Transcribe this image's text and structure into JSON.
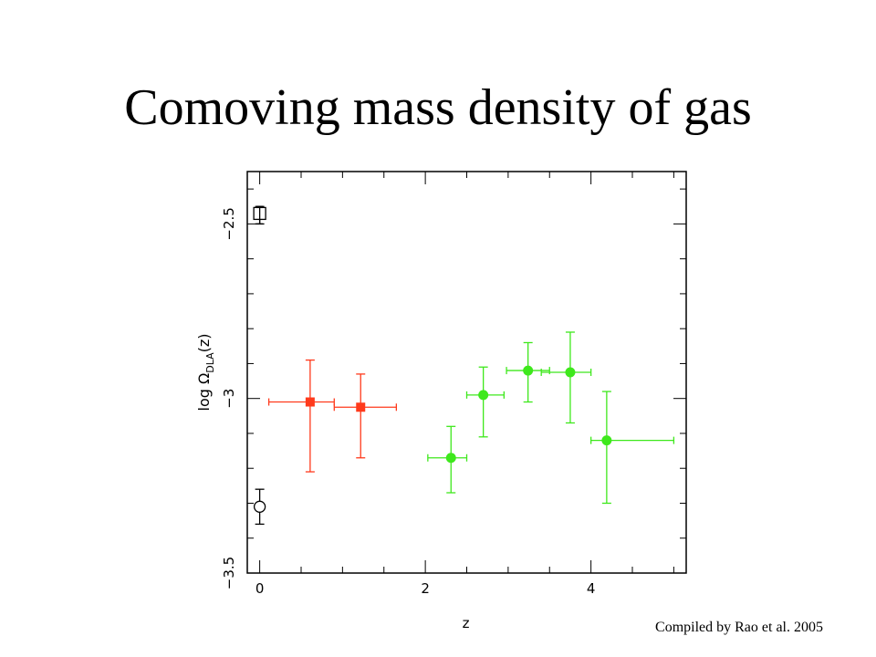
{
  "slide": {
    "title": "Comoving mass density of gas",
    "credit": "Compiled by Rao et al. 2005"
  },
  "chart_data": {
    "type": "scatter",
    "xlabel": "z",
    "ylabel": "log Ω",
    "ylabel_sub": "DLA",
    "ylabel_tail": "(z)",
    "xlim": [
      -0.15,
      5.15
    ],
    "ylim": [
      -3.5,
      -2.35
    ],
    "xticks": [
      0,
      2,
      4
    ],
    "xtick_labels": [
      "0",
      "2",
      "4"
    ],
    "yticks": [
      -3.5,
      -3,
      -2.5
    ],
    "ytick_labels": [
      "−3.5",
      "−3",
      "−2.5"
    ],
    "grid": false,
    "colors": {
      "low_z": "#ff3a1c",
      "high_z": "#3ee81c",
      "local": "#000000"
    },
    "series": [
      {
        "marker": "open-circle",
        "color": "#000000",
        "points": [
          {
            "x": 0.0,
            "y": -3.31,
            "x_lo": 0.0,
            "x_hi": 0.0,
            "y_lo": -3.36,
            "y_hi": -3.26
          }
        ]
      },
      {
        "marker": "open-square",
        "color": "#000000",
        "points": [
          {
            "x": 0.0,
            "y": -2.47,
            "x_lo": 0.0,
            "x_hi": 0.0,
            "y_lo": -2.5,
            "y_hi": -2.45
          }
        ]
      },
      {
        "marker": "filled-square",
        "color": "#ff3a1c",
        "points": [
          {
            "x": 0.609,
            "y": -3.01,
            "x_lo": 0.11,
            "x_hi": 0.9,
            "y_lo": -3.21,
            "y_hi": -2.89
          },
          {
            "x": 1.219,
            "y": -3.025,
            "x_lo": 0.9,
            "x_hi": 1.65,
            "y_lo": -3.17,
            "y_hi": -2.93
          }
        ]
      },
      {
        "marker": "filled-circle",
        "color": "#3ee81c",
        "points": [
          {
            "x": 2.31,
            "y": -3.17,
            "x_lo": 2.03,
            "x_hi": 2.5,
            "y_lo": -3.27,
            "y_hi": -3.08
          },
          {
            "x": 2.7,
            "y": -2.99,
            "x_lo": 2.5,
            "x_hi": 2.95,
            "y_lo": -3.11,
            "y_hi": -2.91
          },
          {
            "x": 3.24,
            "y": -2.92,
            "x_lo": 2.98,
            "x_hi": 3.5,
            "y_lo": -3.01,
            "y_hi": -2.84
          },
          {
            "x": 3.75,
            "y": -2.925,
            "x_lo": 3.4,
            "x_hi": 4.0,
            "y_lo": -3.07,
            "y_hi": -2.81
          },
          {
            "x": 4.19,
            "y": -3.12,
            "x_lo": 4.0,
            "x_hi": 5.0,
            "y_lo": -3.3,
            "y_hi": -2.98
          }
        ]
      }
    ]
  }
}
